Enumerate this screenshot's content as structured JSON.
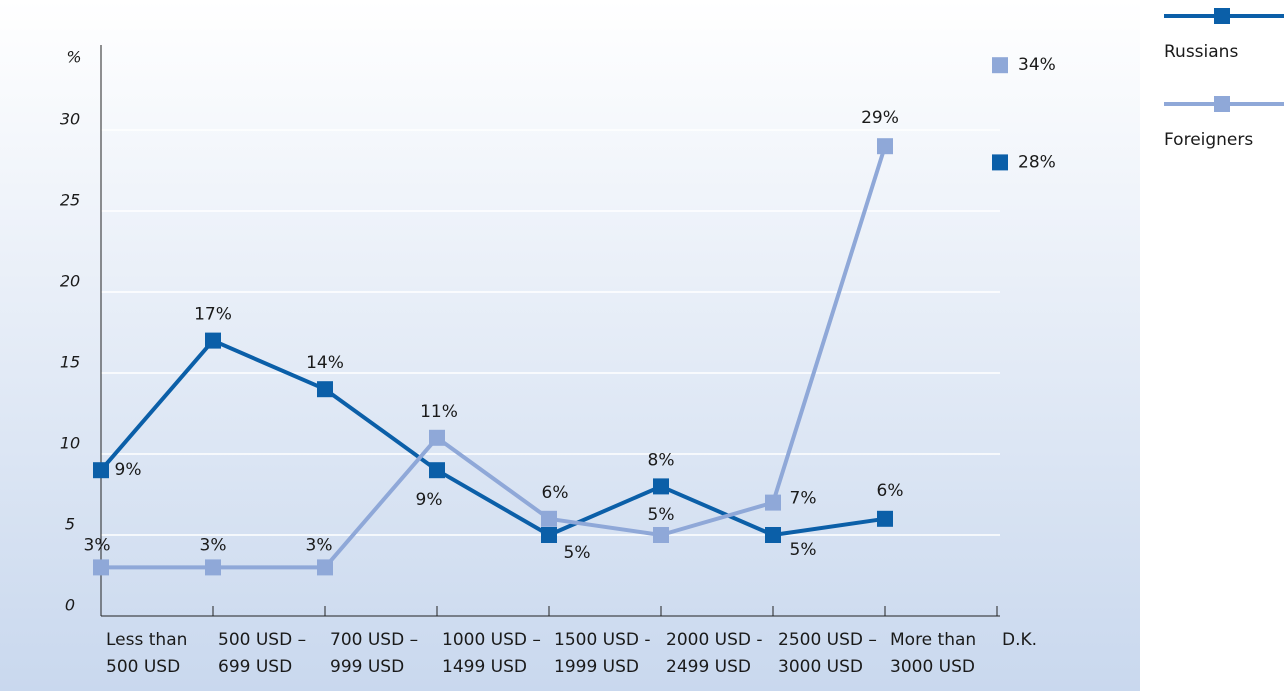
{
  "chart_data": {
    "type": "line",
    "categories": [
      [
        "Less than",
        "500 USD"
      ],
      [
        "500 USD –",
        "699 USD"
      ],
      [
        "700 USD –",
        "999 USD"
      ],
      [
        "1000 USD –",
        "1499 USD"
      ],
      [
        "1500 USD -",
        "1999 USD"
      ],
      [
        "2000 USD -",
        "2499 USD"
      ],
      [
        "2500 USD –",
        "3000 USD"
      ],
      [
        "More than",
        "3000 USD"
      ],
      [
        "D.K."
      ]
    ],
    "y_label": "%",
    "series": [
      {
        "name": "Russians",
        "color": "#0b5fa8",
        "values": [
          9,
          17,
          14,
          9,
          5,
          8,
          5,
          6,
          28
        ],
        "value_labels": [
          "9%",
          "17%",
          "14%",
          "9%",
          "5%",
          "8%",
          "5%",
          "6%",
          "28%"
        ]
      },
      {
        "name": "Foreigners",
        "color": "#8fa8d8",
        "values": [
          3,
          3,
          3,
          11,
          6,
          5,
          7,
          29,
          34
        ],
        "value_labels": [
          "3%",
          "3%",
          "3%",
          "11%",
          "6%",
          "5%",
          "7%",
          "29%",
          "34%"
        ]
      }
    ],
    "ylim": [
      0,
      35
    ],
    "yticks": [
      0,
      5,
      10,
      15,
      20,
      25,
      30
    ],
    "grid": true
  }
}
